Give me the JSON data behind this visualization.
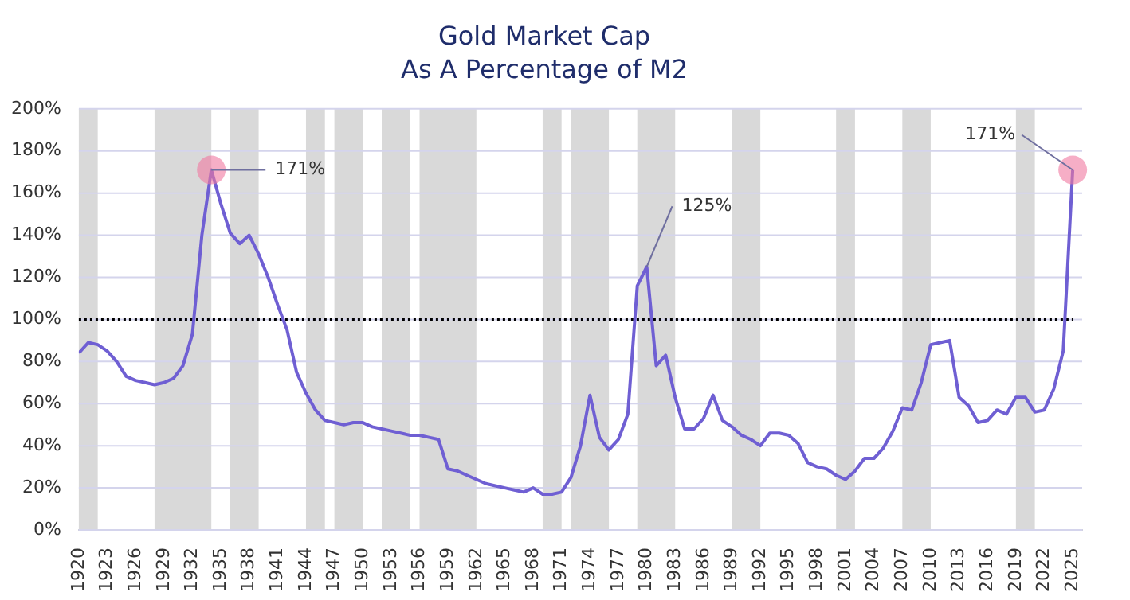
{
  "chart_data": {
    "type": "line",
    "title": "Gold Market Cap",
    "subtitle": "As A Percentage of M2",
    "x": [
      1920,
      1921,
      1922,
      1923,
      1924,
      1925,
      1926,
      1927,
      1928,
      1929,
      1930,
      1931,
      1932,
      1933,
      1934,
      1935,
      1936,
      1937,
      1938,
      1939,
      1940,
      1941,
      1942,
      1943,
      1944,
      1945,
      1946,
      1947,
      1948,
      1949,
      1950,
      1951,
      1952,
      1953,
      1954,
      1955,
      1956,
      1957,
      1958,
      1959,
      1960,
      1961,
      1962,
      1963,
      1964,
      1965,
      1966,
      1967,
      1968,
      1969,
      1970,
      1971,
      1972,
      1973,
      1974,
      1975,
      1976,
      1977,
      1978,
      1979,
      1980,
      1981,
      1982,
      1983,
      1984,
      1985,
      1986,
      1987,
      1988,
      1989,
      1990,
      1991,
      1992,
      1993,
      1994,
      1995,
      1996,
      1997,
      1998,
      1999,
      2000,
      2001,
      2002,
      2003,
      2004,
      2005,
      2006,
      2007,
      2008,
      2009,
      2010,
      2011,
      2012,
      2013,
      2014,
      2015,
      2016,
      2017,
      2018,
      2019,
      2020,
      2021,
      2022,
      2023,
      2024,
      2025
    ],
    "series": [
      {
        "color": "#6f5fd3",
        "values": [
          84,
          89,
          88,
          85,
          80,
          73,
          71,
          70,
          69,
          70,
          72,
          78,
          93,
          140,
          171,
          155,
          141,
          136,
          140,
          131,
          120,
          107,
          95,
          75,
          65,
          57,
          52,
          51,
          50,
          51,
          51,
          49,
          48,
          47,
          46,
          45,
          45,
          44,
          43,
          29,
          28,
          26,
          24,
          22,
          21,
          20,
          19,
          18,
          20,
          17,
          17,
          18,
          25,
          40,
          64,
          44,
          38,
          43,
          55,
          116,
          125,
          78,
          83,
          63,
          48,
          48,
          53,
          64,
          52,
          49,
          45,
          43,
          40,
          46,
          46,
          45,
          41,
          32,
          30,
          29,
          26,
          24,
          28,
          34,
          34,
          39,
          47,
          58,
          57,
          70,
          88,
          89,
          90,
          63,
          59,
          51,
          52,
          57,
          55,
          63,
          63,
          56,
          57,
          67,
          85,
          171
        ]
      }
    ],
    "xlim": [
      1920,
      2026
    ],
    "xticks": [
      1920,
      1923,
      1926,
      1929,
      1932,
      1935,
      1938,
      1941,
      1944,
      1947,
      1950,
      1953,
      1956,
      1959,
      1962,
      1965,
      1968,
      1971,
      1974,
      1977,
      1980,
      1983,
      1986,
      1989,
      1992,
      1995,
      1998,
      2001,
      2004,
      2007,
      2010,
      2013,
      2016,
      2019,
      2022,
      2025
    ],
    "ylim": [
      0,
      200
    ],
    "yticks": [
      {
        "value": 0,
        "label": "0%"
      },
      {
        "value": 20,
        "label": "20%"
      },
      {
        "value": 40,
        "label": "40%"
      },
      {
        "value": 60,
        "label": "60%"
      },
      {
        "value": 80,
        "label": "80%"
      },
      {
        "value": 100,
        "label": "100%"
      },
      {
        "value": 120,
        "label": "120%"
      },
      {
        "value": 140,
        "label": "140%"
      },
      {
        "value": 160,
        "label": "160%"
      },
      {
        "value": 180,
        "label": "180%"
      },
      {
        "value": 200,
        "label": "200%"
      }
    ],
    "ref_lines": [
      {
        "axis": "y",
        "value": 100,
        "color": "#000000",
        "line_style": "dotted"
      }
    ],
    "bands": [
      {
        "axis": "x",
        "from": 1920,
        "to": 1922,
        "color": "#d9d9d9"
      },
      {
        "axis": "x",
        "from": 1928,
        "to": 1934,
        "color": "#d9d9d9"
      },
      {
        "axis": "x",
        "from": 1936,
        "to": 1939,
        "color": "#d9d9d9"
      },
      {
        "axis": "x",
        "from": 1944,
        "to": 1946,
        "color": "#d9d9d9"
      },
      {
        "axis": "x",
        "from": 1947,
        "to": 1950,
        "color": "#d9d9d9"
      },
      {
        "axis": "x",
        "from": 1952,
        "to": 1955,
        "color": "#d9d9d9"
      },
      {
        "axis": "x",
        "from": 1956,
        "to": 1962,
        "color": "#d9d9d9"
      },
      {
        "axis": "x",
        "from": 1969,
        "to": 1971,
        "color": "#d9d9d9"
      },
      {
        "axis": "x",
        "from": 1972,
        "to": 1976,
        "color": "#d9d9d9"
      },
      {
        "axis": "x",
        "from": 1979,
        "to": 1983,
        "color": "#d9d9d9"
      },
      {
        "axis": "x",
        "from": 1989,
        "to": 1992,
        "color": "#d9d9d9"
      },
      {
        "axis": "x",
        "from": 2000,
        "to": 2002,
        "color": "#d9d9d9"
      },
      {
        "axis": "x",
        "from": 2007,
        "to": 2010,
        "color": "#d9d9d9"
      },
      {
        "axis": "x",
        "from": 2019,
        "to": 2021,
        "color": "#d9d9d9"
      }
    ],
    "annotations": [
      {
        "text": "171%",
        "x": 1934,
        "y": 171
      },
      {
        "text": "125%",
        "x": 1980,
        "y": 125
      },
      {
        "text": "171%",
        "x": 2025,
        "y": 171
      }
    ],
    "grid": "y",
    "legend": false,
    "marker": "none",
    "line_style": "solid"
  }
}
